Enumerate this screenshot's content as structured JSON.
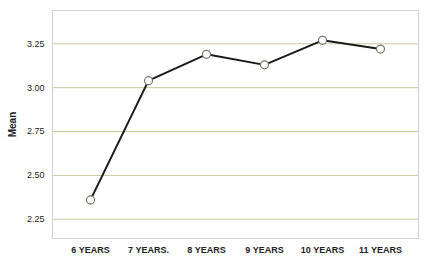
{
  "chart_data": {
    "type": "line",
    "categories": [
      "6 YEARS",
      "7 YEARS.",
      "8 YEARS",
      "9 YEARS",
      "10 YEARS",
      "11 YEARS"
    ],
    "values": [
      2.36,
      3.04,
      3.19,
      3.13,
      3.27,
      3.22
    ],
    "color": "#1a1a1a",
    "marker": "circle",
    "y_label": "Mean",
    "ylim": [
      2.14,
      3.44
    ],
    "yticks": [
      2.25,
      {
        "value": 2.5,
        "label": "2.50"
      },
      2.75,
      {
        "value": 3,
        "label": "3.00"
      },
      3.25
    ],
    "grid": true
  }
}
